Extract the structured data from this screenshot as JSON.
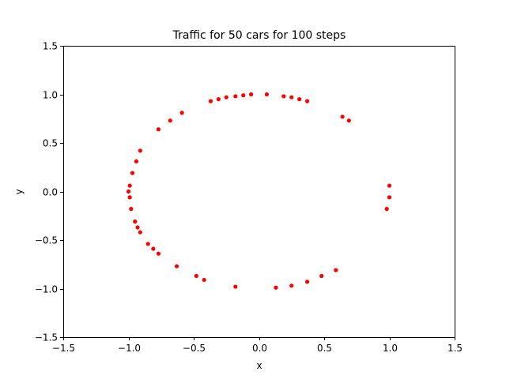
{
  "chart_data": {
    "type": "scatter",
    "title": "Traffic for 50 cars for 100 steps",
    "xlabel": "x",
    "ylabel": "y",
    "xlim": [
      -1.5,
      1.5
    ],
    "ylim": [
      -1.5,
      1.5
    ],
    "x_ticks": [
      -1.5,
      -1.0,
      -0.5,
      0.0,
      0.5,
      1.0,
      1.5
    ],
    "y_ticks": [
      -1.5,
      -1.0,
      -0.5,
      0.0,
      0.5,
      1.0,
      1.5
    ],
    "x_tick_labels": [
      "−1.5",
      "−1.0",
      "−0.5",
      "0.0",
      "0.5",
      "1.0",
      "1.5"
    ],
    "y_tick_labels": [
      "−1.5",
      "−1.0",
      "−0.5",
      "0.0",
      "0.5",
      "1.0",
      "1.5"
    ],
    "grid": false,
    "color": "#ff0000",
    "points": [
      {
        "x": 0.06,
        "y": 1.0
      },
      {
        "x": -0.06,
        "y": 1.0
      },
      {
        "x": -0.12,
        "y": 0.99
      },
      {
        "x": -0.18,
        "y": 0.98
      },
      {
        "x": -0.25,
        "y": 0.97
      },
      {
        "x": -0.31,
        "y": 0.95
      },
      {
        "x": -0.37,
        "y": 0.93
      },
      {
        "x": 0.19,
        "y": 0.98
      },
      {
        "x": 0.25,
        "y": 0.97
      },
      {
        "x": 0.31,
        "y": 0.95
      },
      {
        "x": 0.37,
        "y": 0.93
      },
      {
        "x": -0.59,
        "y": 0.81
      },
      {
        "x": -0.68,
        "y": 0.73
      },
      {
        "x": -0.77,
        "y": 0.64
      },
      {
        "x": 0.64,
        "y": 0.77
      },
      {
        "x": 0.69,
        "y": 0.73
      },
      {
        "x": -0.91,
        "y": 0.42
      },
      {
        "x": -0.94,
        "y": 0.31
      },
      {
        "x": -0.97,
        "y": 0.19
      },
      {
        "x": -0.99,
        "y": 0.06
      },
      {
        "x": -1.0,
        "y": 0.0
      },
      {
        "x": -0.99,
        "y": -0.06
      },
      {
        "x": -0.98,
        "y": -0.18
      },
      {
        "x": -0.95,
        "y": -0.31
      },
      {
        "x": -0.93,
        "y": -0.37
      },
      {
        "x": -0.91,
        "y": -0.42
      },
      {
        "x": -0.85,
        "y": -0.54
      },
      {
        "x": -0.81,
        "y": -0.59
      },
      {
        "x": -0.77,
        "y": -0.64
      },
      {
        "x": -0.63,
        "y": -0.77
      },
      {
        "x": -0.48,
        "y": -0.87
      },
      {
        "x": -0.42,
        "y": -0.91
      },
      {
        "x": -0.18,
        "y": -0.98
      },
      {
        "x": 1.0,
        "y": 0.06
      },
      {
        "x": 1.0,
        "y": -0.06
      },
      {
        "x": 0.98,
        "y": -0.18
      },
      {
        "x": 0.59,
        "y": -0.81
      },
      {
        "x": 0.48,
        "y": -0.87
      },
      {
        "x": 0.37,
        "y": -0.93
      },
      {
        "x": 0.25,
        "y": -0.97
      },
      {
        "x": 0.13,
        "y": -0.99
      }
    ]
  }
}
